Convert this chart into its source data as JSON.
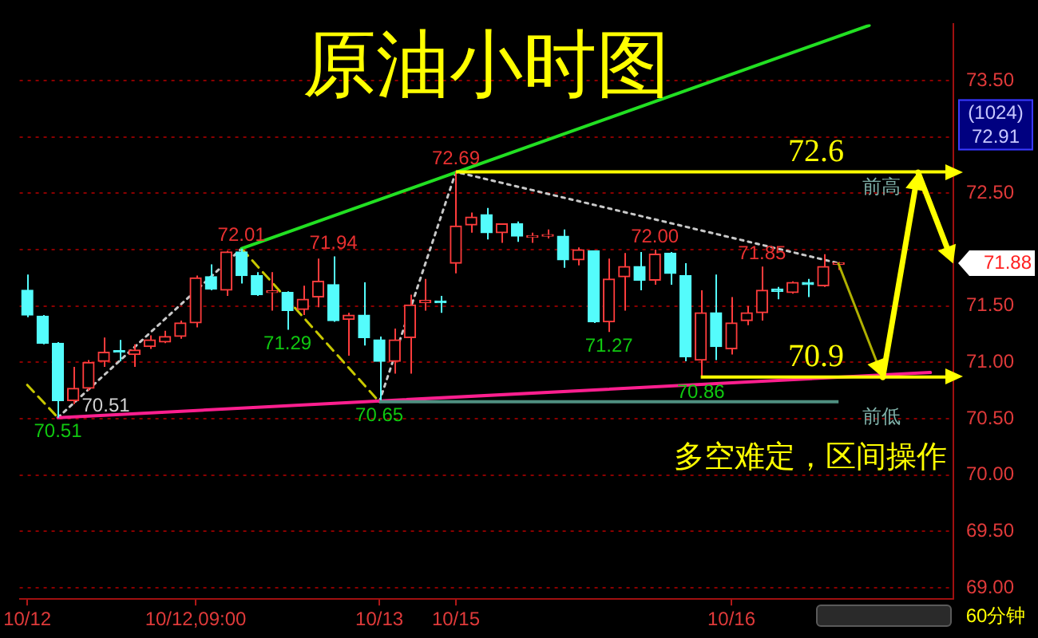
{
  "chart_data": {
    "type": "candlestick",
    "title": "原油小时图",
    "categories": [
      "10/12",
      null,
      null,
      null,
      null,
      null,
      null,
      null,
      null,
      null,
      null,
      "10/12,09:00",
      null,
      null,
      null,
      null,
      null,
      null,
      null,
      null,
      null,
      null,
      null,
      "10/13",
      null,
      null,
      null,
      null,
      "10/15",
      null,
      null,
      null,
      null,
      null,
      null,
      null,
      null,
      null,
      null,
      null,
      null,
      null,
      null,
      null,
      null,
      null,
      "10/16",
      null,
      null,
      null,
      null,
      null,
      null,
      null,
      null,
      null,
      null,
      null,
      null,
      null,
      null
    ],
    "ohlc": [
      [
        71.64,
        71.78,
        71.4,
        71.42
      ],
      [
        71.41,
        71.42,
        71.16,
        71.17
      ],
      [
        71.17,
        71.18,
        70.51,
        70.66
      ],
      [
        70.66,
        70.96,
        70.63,
        70.77
      ],
      [
        70.77,
        71.02,
        70.75,
        71.0
      ],
      [
        71.01,
        71.22,
        70.96,
        71.09
      ],
      [
        71.1,
        71.2,
        71.01,
        71.09
      ],
      [
        71.07,
        71.16,
        70.96,
        71.11
      ],
      [
        71.14,
        71.24,
        71.12,
        71.2
      ],
      [
        71.18,
        71.28,
        71.17,
        71.23
      ],
      [
        71.23,
        71.37,
        71.21,
        71.35
      ],
      [
        71.35,
        71.77,
        71.31,
        71.75
      ],
      [
        71.76,
        71.87,
        71.64,
        71.65
      ],
      [
        71.64,
        71.99,
        71.59,
        71.98
      ],
      [
        71.98,
        72.01,
        71.7,
        71.77
      ],
      [
        71.77,
        71.8,
        71.59,
        71.6
      ],
      [
        71.62,
        71.8,
        71.46,
        71.63
      ],
      [
        71.62,
        71.63,
        71.29,
        71.46
      ],
      [
        71.47,
        71.68,
        71.42,
        71.56
      ],
      [
        71.58,
        71.92,
        71.49,
        71.72
      ],
      [
        71.69,
        71.94,
        71.36,
        71.37
      ],
      [
        71.38,
        71.44,
        71.06,
        71.42
      ],
      [
        71.42,
        71.71,
        71.15,
        71.22
      ],
      [
        71.2,
        71.23,
        70.65,
        71.01
      ],
      [
        71.01,
        71.3,
        70.9,
        71.2
      ],
      [
        71.22,
        71.6,
        70.9,
        71.51
      ],
      [
        71.53,
        71.74,
        71.46,
        71.55
      ],
      [
        71.54,
        71.59,
        71.44,
        71.53
      ],
      [
        71.88,
        72.69,
        71.79,
        72.21
      ],
      [
        72.22,
        72.33,
        72.15,
        72.29
      ],
      [
        72.31,
        72.37,
        72.09,
        72.15
      ],
      [
        72.15,
        72.23,
        72.06,
        72.23
      ],
      [
        72.23,
        72.25,
        72.07,
        72.12
      ],
      [
        72.11,
        72.15,
        72.06,
        72.12
      ],
      [
        72.12,
        72.18,
        72.1,
        72.13
      ],
      [
        72.12,
        72.18,
        71.84,
        71.91
      ],
      [
        71.91,
        72.02,
        71.86,
        72.0
      ],
      [
        71.99,
        71.99,
        71.35,
        71.36
      ],
      [
        71.36,
        71.92,
        71.27,
        71.74
      ],
      [
        71.76,
        71.97,
        71.46,
        71.85
      ],
      [
        71.85,
        71.98,
        71.64,
        71.73
      ],
      [
        71.73,
        72.0,
        71.69,
        71.96
      ],
      [
        71.97,
        71.98,
        71.69,
        71.79
      ],
      [
        71.77,
        71.88,
        71.01,
        71.05
      ],
      [
        71.02,
        71.64,
        70.86,
        71.44
      ],
      [
        71.44,
        71.78,
        71.02,
        71.14
      ],
      [
        71.12,
        71.58,
        71.07,
        71.35
      ],
      [
        71.37,
        71.5,
        71.33,
        71.44
      ],
      [
        71.44,
        71.85,
        71.37,
        71.64
      ],
      [
        71.65,
        71.67,
        71.56,
        71.63
      ],
      [
        71.62,
        71.72,
        71.61,
        71.71
      ],
      [
        71.71,
        71.74,
        71.58,
        71.69
      ],
      [
        71.68,
        71.96,
        71.67,
        71.85
      ],
      [
        71.87,
        71.89,
        71.82,
        71.88
      ],
      null,
      null,
      null,
      null,
      null,
      null,
      null
    ],
    "series": [
      {
        "type": "line",
        "color": "#22e022",
        "line_style": "solid",
        "values": [
          null,
          null,
          null,
          null,
          null,
          null,
          null,
          null,
          null,
          null,
          null,
          null,
          null,
          null,
          72.01,
          null,
          null,
          null,
          null,
          null,
          null,
          null,
          null,
          null,
          null,
          null,
          null,
          null,
          null,
          null,
          null,
          null,
          null,
          null,
          null,
          null,
          null,
          null,
          null,
          null,
          null,
          null,
          null,
          null,
          null,
          null,
          null,
          null,
          null,
          null,
          null,
          null,
          null,
          null,
          null,
          73.99,
          null,
          null,
          null,
          null,
          null
        ]
      },
      {
        "type": "line",
        "color": "#ff1f8f",
        "line_style": "solid",
        "values": [
          null,
          null,
          70.51,
          null,
          null,
          null,
          null,
          null,
          null,
          null,
          null,
          null,
          null,
          null,
          null,
          null,
          null,
          null,
          null,
          null,
          null,
          null,
          null,
          null,
          null,
          null,
          null,
          null,
          null,
          null,
          null,
          null,
          null,
          null,
          null,
          null,
          null,
          null,
          null,
          null,
          null,
          null,
          null,
          null,
          null,
          null,
          null,
          null,
          null,
          null,
          null,
          null,
          null,
          null,
          null,
          null,
          null,
          null,
          null,
          70.91,
          null
        ]
      },
      {
        "type": "line",
        "color": "#c8c8c8",
        "line_style": "dotted",
        "values": [
          null,
          null,
          70.51,
          null,
          null,
          null,
          null,
          null,
          null,
          null,
          null,
          null,
          null,
          null,
          72.01,
          null,
          null,
          null,
          null,
          null,
          null,
          null,
          null,
          null,
          null,
          null,
          null,
          null,
          null,
          null,
          null,
          null,
          null,
          null,
          null,
          null,
          null,
          null,
          null,
          null,
          null,
          null,
          null,
          null,
          null,
          null,
          null,
          null,
          null,
          null,
          null,
          null,
          null,
          null,
          null,
          null,
          null,
          null,
          null,
          null,
          null
        ]
      },
      {
        "type": "line",
        "color": "#c8c8c8",
        "line_style": "dotted",
        "values": [
          null,
          null,
          null,
          null,
          null,
          null,
          null,
          null,
          null,
          null,
          null,
          null,
          null,
          null,
          null,
          null,
          null,
          null,
          null,
          null,
          null,
          null,
          null,
          70.65,
          null,
          null,
          null,
          null,
          72.69,
          null,
          null,
          null,
          null,
          null,
          null,
          null,
          null,
          null,
          null,
          null,
          null,
          null,
          null,
          null,
          null,
          null,
          null,
          null,
          null,
          null,
          null,
          null,
          null,
          71.88,
          null,
          null,
          null,
          null,
          null,
          null,
          null
        ]
      },
      {
        "type": "line",
        "color": "#c8c800",
        "line_style": "dashed",
        "values": [
          70.8,
          null,
          70.51,
          null,
          null,
          null,
          null,
          null,
          null,
          null,
          null,
          null,
          null,
          null,
          null,
          null,
          null,
          null,
          null,
          null,
          null,
          null,
          null,
          null,
          null,
          null,
          null,
          null,
          null,
          null,
          null,
          null,
          null,
          null,
          null,
          null,
          null,
          null,
          null,
          null,
          null,
          null,
          null,
          null,
          null,
          null,
          null,
          null,
          null,
          null,
          null,
          null,
          null,
          null,
          null,
          null,
          null,
          null,
          null,
          null,
          null
        ]
      },
      {
        "type": "line",
        "color": "#c8c800",
        "line_style": "dashed",
        "values": [
          null,
          null,
          null,
          null,
          null,
          null,
          null,
          null,
          null,
          null,
          null,
          null,
          null,
          null,
          72.01,
          null,
          null,
          null,
          null,
          null,
          null,
          null,
          null,
          70.65,
          null,
          null,
          null,
          null,
          null,
          null,
          null,
          null,
          null,
          null,
          null,
          null,
          null,
          null,
          null,
          null,
          null,
          null,
          null,
          null,
          null,
          null,
          null,
          null,
          null,
          null,
          null,
          null,
          null,
          null,
          null,
          null,
          null,
          null,
          null,
          null,
          null
        ]
      }
    ],
    "ylim": [
      68.9,
      74.0
    ],
    "yticks": [
      {
        "value": 69,
        "label": "69.00"
      },
      {
        "value": 69.5,
        "label": "69.50"
      },
      {
        "value": 70,
        "label": "70.00"
      },
      {
        "value": 70.5,
        "label": "70.50"
      },
      {
        "value": 71,
        "label": "71.00"
      },
      {
        "value": 71.5,
        "label": "71.50"
      },
      {
        "value": 72,
        "label": null
      },
      {
        "value": 72.5,
        "label": "72.50"
      },
      {
        "value": 73,
        "label": null
      },
      {
        "value": 73.5,
        "label": "73.50"
      }
    ],
    "grid": "y",
    "ref_lines": [
      {
        "axis": "y",
        "value": 72.69,
        "label": "前高",
        "color": "#ffff00"
      },
      {
        "axis": "y",
        "value": 70.87,
        "color": "#ffff00"
      },
      {
        "axis": "y",
        "value": 70.65,
        "label": "前低",
        "color": "#4f8f80"
      }
    ],
    "annotations": [
      {
        "text": "72.01",
        "y": 72.01
      },
      {
        "text": "71.94",
        "y": 71.94
      },
      {
        "text": "71.29",
        "y": 71.29
      },
      {
        "text": "70.51",
        "y": 70.51
      },
      {
        "text": "70.51",
        "y": 70.51
      },
      {
        "text": "70.65",
        "x": "10/13",
        "y": 70.65
      },
      {
        "text": "72.69",
        "x": "10/15",
        "y": 72.69
      },
      {
        "text": "72.00",
        "y": 72.0
      },
      {
        "text": "71.27",
        "y": 71.27
      },
      {
        "text": "71.85",
        "y": 71.85
      },
      {
        "text": "70.86",
        "y": 70.86
      },
      {
        "text": "72.6",
        "y": 72.69
      },
      {
        "text": "70.9",
        "y": 70.87
      },
      "多空难定，区间操作",
      "(1024)",
      "72.91",
      "60分钟",
      "71.88"
    ]
  }
}
